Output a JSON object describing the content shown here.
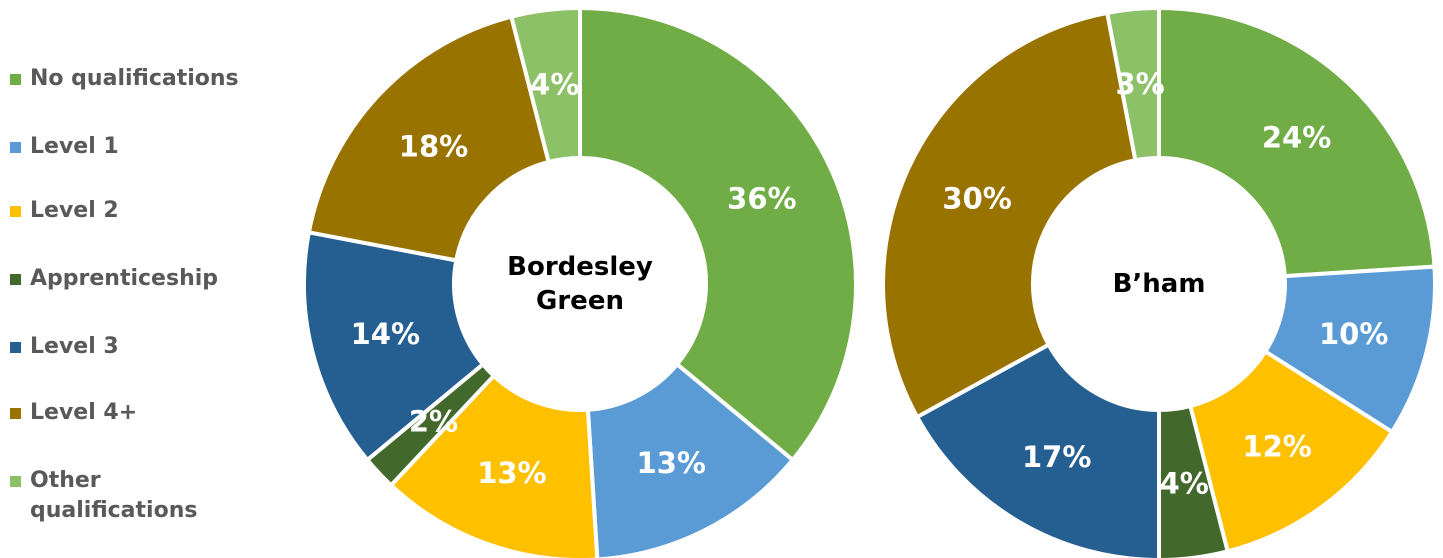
{
  "chart_data": [
    {
      "type": "pie",
      "donut": true,
      "center_label": [
        "Bordesley",
        "Green"
      ],
      "categories": [
        "No qualifications",
        "Level 1",
        "Level 2",
        "Apprenticeship",
        "Level 3",
        "Level 4+",
        "Other qualifications"
      ],
      "values": [
        36,
        13,
        13,
        2,
        14,
        18,
        4
      ],
      "data_labels": [
        "36%",
        "13%",
        "13%",
        "2%",
        "14%",
        "18%",
        "4%"
      ]
    },
    {
      "type": "pie",
      "donut": true,
      "center_label": [
        "B’ham"
      ],
      "categories": [
        "No qualifications",
        "Level 1",
        "Level 2",
        "Apprenticeship",
        "Level 3",
        "Level 4+",
        "Other qualifications"
      ],
      "values": [
        24,
        10,
        12,
        4,
        17,
        30,
        3
      ],
      "data_labels": [
        "24%",
        "10%",
        "12%",
        "4%",
        "17%",
        "30%",
        "3%"
      ]
    }
  ],
  "legend": {
    "position": "left",
    "items": [
      {
        "label": "No qualifications",
        "color": "#70AD47"
      },
      {
        "label": "Level 1",
        "color": "#5B9BD5"
      },
      {
        "label": "Level 2",
        "color": "#FFC000"
      },
      {
        "label": "Apprenticeship",
        "color": "#43682B"
      },
      {
        "label": "Level 3",
        "color": "#255E91"
      },
      {
        "label": "Level 4+",
        "color": "#997300"
      },
      {
        "label": "Other qualifications",
        "color": "#8CC168"
      }
    ]
  }
}
